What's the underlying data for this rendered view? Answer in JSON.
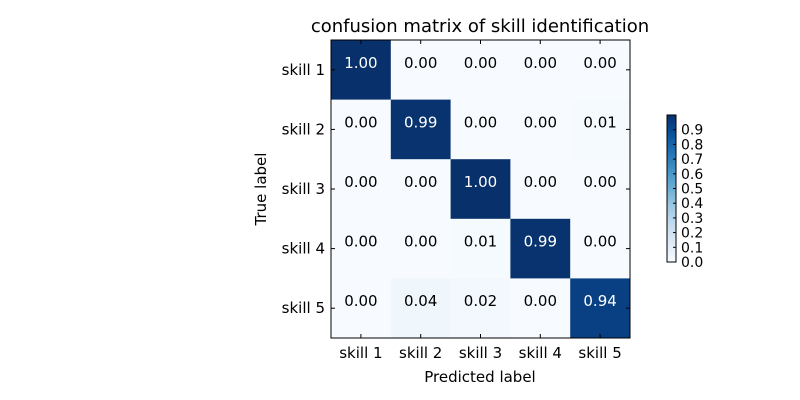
{
  "chart_data": {
    "type": "heatmap",
    "title": "confusion matrix of skill identification",
    "xlabel": "Predicted label",
    "ylabel": "True label",
    "x_categories": [
      "skill 1",
      "skill 2",
      "skill 3",
      "skill 4",
      "skill 5"
    ],
    "y_categories": [
      "skill 1",
      "skill 2",
      "skill 3",
      "skill 4",
      "skill 5"
    ],
    "values": [
      [
        1.0,
        0.0,
        0.0,
        0.0,
        0.0
      ],
      [
        0.0,
        0.99,
        0.0,
        0.0,
        0.01
      ],
      [
        0.0,
        0.0,
        1.0,
        0.0,
        0.0
      ],
      [
        0.0,
        0.0,
        0.01,
        0.99,
        0.0
      ],
      [
        0.0,
        0.04,
        0.02,
        0.0,
        0.94
      ]
    ],
    "cell_labels": [
      [
        "1.00",
        "0.00",
        "0.00",
        "0.00",
        "0.00"
      ],
      [
        "0.00",
        "0.99",
        "0.00",
        "0.00",
        "0.01"
      ],
      [
        "0.00",
        "0.00",
        "1.00",
        "0.00",
        "0.00"
      ],
      [
        "0.00",
        "0.00",
        "0.01",
        "0.99",
        "0.00"
      ],
      [
        "0.00",
        "0.04",
        "0.02",
        "0.00",
        "0.94"
      ]
    ],
    "colormap": "Blues",
    "colorbar": {
      "range": [
        0,
        1
      ],
      "ticks": [
        "0.0",
        "0.1",
        "0.2",
        "0.3",
        "0.4",
        "0.5",
        "0.6",
        "0.7",
        "0.8",
        "0.9"
      ]
    }
  }
}
